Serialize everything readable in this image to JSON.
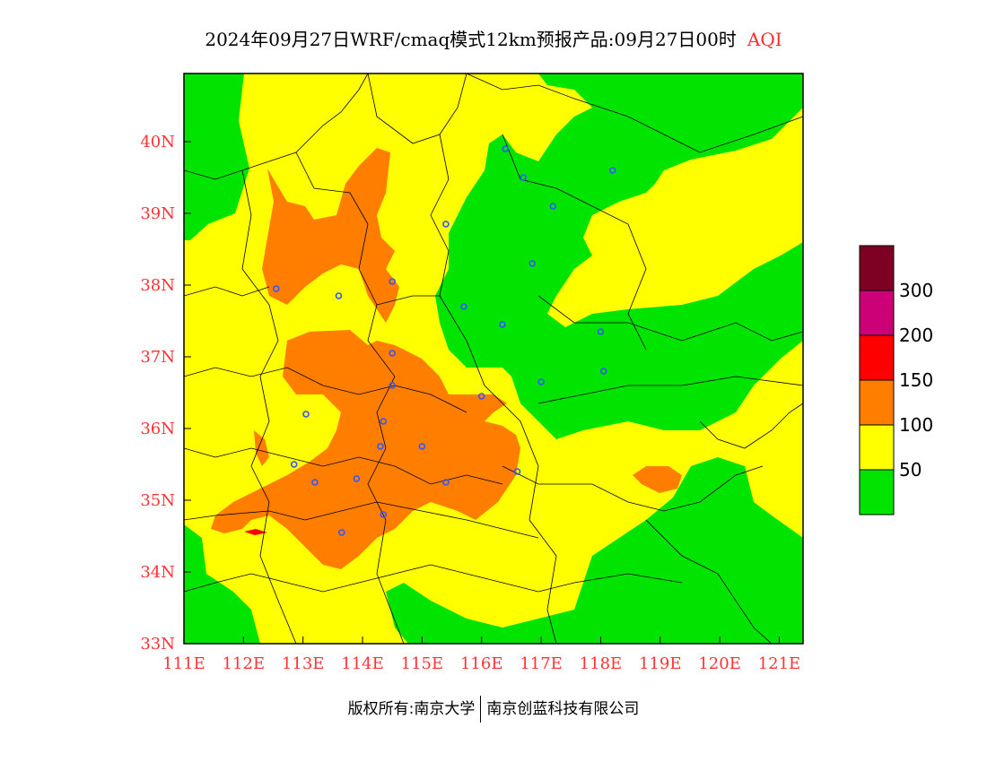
{
  "title": {
    "main": "2024年09月27日WRF/cmaq模式12km预报产品:09月27日00时",
    "variable": "AQI"
  },
  "colors": {
    "green": "#00e400",
    "yellow": "#ffff00",
    "orange": "#ff7e00",
    "red": "#ff0000",
    "magenta": "#cc0077",
    "maroon": "#7e0023",
    "site": "#3355ff",
    "tick": "#ff3333"
  },
  "map": {
    "lon_range": [
      111,
      121.4
    ],
    "lat_range": [
      33,
      40.95
    ],
    "lon_ticks": [
      "111E",
      "112E",
      "113E",
      "114E",
      "115E",
      "116E",
      "117E",
      "118E",
      "119E",
      "120E",
      "121E"
    ],
    "lat_ticks": [
      "33N",
      "34N",
      "35N",
      "36N",
      "37N",
      "38N",
      "39N",
      "40N"
    ]
  },
  "legend": {
    "labels": [
      "50",
      "100",
      "150",
      "200",
      "300"
    ],
    "colors": [
      "#00e400",
      "#ffff00",
      "#ff7e00",
      "#ff0000",
      "#cc0077",
      "#7e0023"
    ]
  },
  "stations": [
    {
      "lon": 116.4,
      "lat": 39.9
    },
    {
      "lon": 116.7,
      "lat": 39.5
    },
    {
      "lon": 118.2,
      "lat": 39.6
    },
    {
      "lon": 117.2,
      "lat": 39.1
    },
    {
      "lon": 115.4,
      "lat": 38.85
    },
    {
      "lon": 116.85,
      "lat": 38.3
    },
    {
      "lon": 112.55,
      "lat": 37.95
    },
    {
      "lon": 113.6,
      "lat": 37.85
    },
    {
      "lon": 114.5,
      "lat": 38.05
    },
    {
      "lon": 115.7,
      "lat": 37.7
    },
    {
      "lon": 116.35,
      "lat": 37.45
    },
    {
      "lon": 118.0,
      "lat": 37.35
    },
    {
      "lon": 114.5,
      "lat": 37.05
    },
    {
      "lon": 118.05,
      "lat": 36.8
    },
    {
      "lon": 117.0,
      "lat": 36.65
    },
    {
      "lon": 114.5,
      "lat": 36.6
    },
    {
      "lon": 116.0,
      "lat": 36.45
    },
    {
      "lon": 113.05,
      "lat": 36.2
    },
    {
      "lon": 114.35,
      "lat": 36.1
    },
    {
      "lon": 114.3,
      "lat": 35.75
    },
    {
      "lon": 115.0,
      "lat": 35.75
    },
    {
      "lon": 112.85,
      "lat": 35.5
    },
    {
      "lon": 116.6,
      "lat": 35.4
    },
    {
      "lon": 113.9,
      "lat": 35.3
    },
    {
      "lon": 113.2,
      "lat": 35.25
    },
    {
      "lon": 115.4,
      "lat": 35.25
    },
    {
      "lon": 114.35,
      "lat": 34.8
    },
    {
      "lon": 113.65,
      "lat": 34.55
    }
  ],
  "footer": {
    "left": "版权所有:南京大学",
    "right": "南京创蓝科技有限公司"
  }
}
